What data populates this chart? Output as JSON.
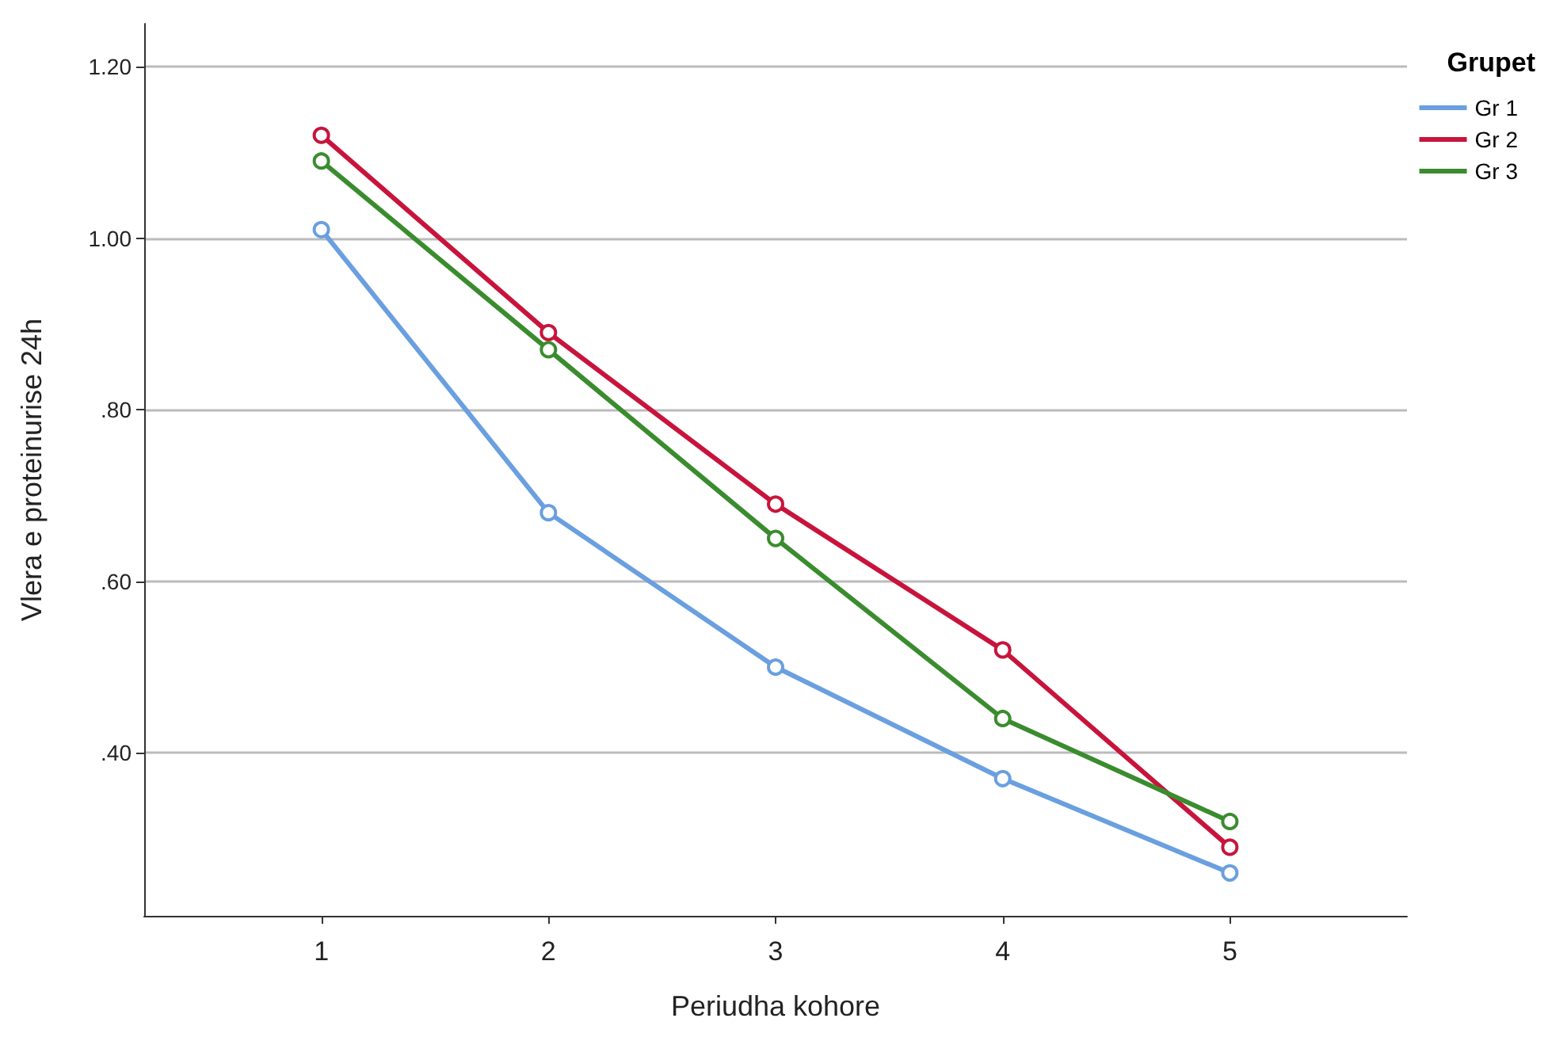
{
  "chart_data": {
    "type": "line",
    "xlabel": "Periudha kohore",
    "ylabel": "Vlera e proteinurise 24h",
    "legend_title": "Grupet",
    "x": [
      1,
      2,
      3,
      4,
      5
    ],
    "series": [
      {
        "name": "Gr 1",
        "color": "#6a9fe0",
        "values": [
          1.01,
          0.68,
          0.5,
          0.37,
          0.26
        ]
      },
      {
        "name": "Gr 2",
        "color": "#c8143c",
        "values": [
          1.12,
          0.89,
          0.69,
          0.52,
          0.29
        ]
      },
      {
        "name": "Gr 3",
        "color": "#3a8c2e",
        "values": [
          1.09,
          0.87,
          0.65,
          0.44,
          0.32
        ]
      }
    ],
    "xlim": [
      0.22,
      5.78
    ],
    "xticks": [
      1,
      2,
      3,
      4,
      5
    ],
    "ylim": [
      0.21,
      1.25
    ],
    "yticks": [
      {
        "value": 0.4,
        "label": ".40"
      },
      {
        "value": 0.6,
        "label": ".60"
      },
      {
        "value": 0.8,
        "label": ".80"
      },
      {
        "value": 1.0,
        "label": "1.00"
      },
      {
        "value": 1.2,
        "label": "1.20"
      }
    ],
    "grid": "y",
    "legend": "top right",
    "marker": "circle",
    "line_style": "solid"
  }
}
